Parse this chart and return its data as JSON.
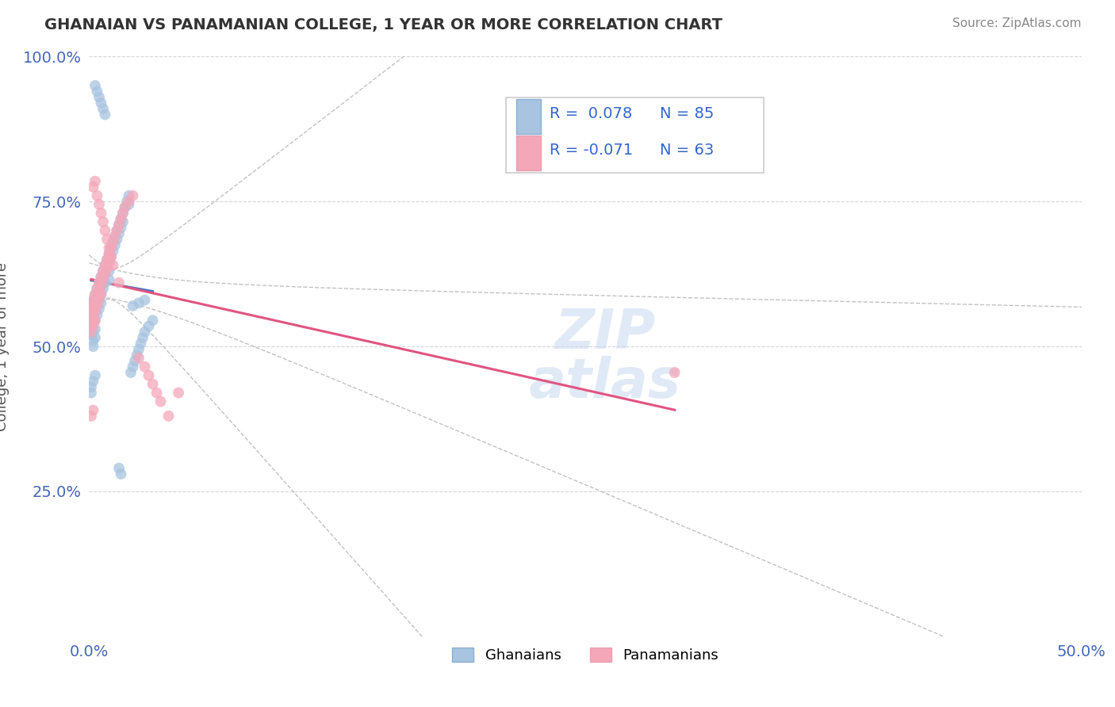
{
  "title": "GHANAIAN VS PANAMANIAN COLLEGE, 1 YEAR OR MORE CORRELATION CHART",
  "source_text": "Source: ZipAtlas.com",
  "ylabel": "College, 1 year or more",
  "xlim": [
    0.0,
    0.5
  ],
  "ylim": [
    0.0,
    1.0
  ],
  "xtick_labels": [
    "0.0%",
    "50.0%"
  ],
  "ytick_labels": [
    "25.0%",
    "50.0%",
    "75.0%",
    "100.0%"
  ],
  "ytick_vals": [
    0.25,
    0.5,
    0.75,
    1.0
  ],
  "xtick_vals": [
    0.0,
    0.5
  ],
  "ghanaian_color": "#a8c4e0",
  "panamanian_color": "#f4a7b9",
  "ghanaian_line_color": "#4472c4",
  "panamanian_line_color": "#e05580",
  "background_color": "#ffffff",
  "watermark": "ZIPatlas",
  "ghanaian_x": [
    0.001,
    0.001,
    0.001,
    0.001,
    0.001,
    0.002,
    0.002,
    0.002,
    0.002,
    0.002,
    0.002,
    0.002,
    0.003,
    0.003,
    0.003,
    0.003,
    0.003,
    0.003,
    0.004,
    0.004,
    0.004,
    0.004,
    0.005,
    0.005,
    0.005,
    0.005,
    0.006,
    0.006,
    0.006,
    0.006,
    0.007,
    0.007,
    0.007,
    0.008,
    0.008,
    0.008,
    0.009,
    0.009,
    0.01,
    0.01,
    0.01,
    0.01,
    0.011,
    0.011,
    0.012,
    0.012,
    0.013,
    0.013,
    0.014,
    0.014,
    0.015,
    0.015,
    0.016,
    0.016,
    0.017,
    0.017,
    0.018,
    0.019,
    0.02,
    0.02,
    0.021,
    0.022,
    0.023,
    0.024,
    0.025,
    0.026,
    0.027,
    0.028,
    0.03,
    0.032,
    0.003,
    0.004,
    0.005,
    0.006,
    0.007,
    0.008,
    0.001,
    0.001,
    0.002,
    0.003,
    0.015,
    0.016,
    0.022,
    0.025,
    0.028
  ],
  "ghanaian_y": [
    0.575,
    0.56,
    0.545,
    0.53,
    0.52,
    0.58,
    0.57,
    0.555,
    0.54,
    0.525,
    0.51,
    0.5,
    0.59,
    0.575,
    0.56,
    0.545,
    0.53,
    0.515,
    0.6,
    0.585,
    0.57,
    0.555,
    0.61,
    0.595,
    0.58,
    0.565,
    0.62,
    0.605,
    0.59,
    0.575,
    0.63,
    0.615,
    0.6,
    0.64,
    0.625,
    0.61,
    0.65,
    0.635,
    0.66,
    0.645,
    0.63,
    0.615,
    0.67,
    0.655,
    0.68,
    0.665,
    0.69,
    0.675,
    0.7,
    0.685,
    0.71,
    0.695,
    0.72,
    0.705,
    0.73,
    0.715,
    0.74,
    0.75,
    0.76,
    0.745,
    0.455,
    0.465,
    0.475,
    0.485,
    0.495,
    0.505,
    0.515,
    0.525,
    0.535,
    0.545,
    0.95,
    0.94,
    0.93,
    0.92,
    0.91,
    0.9,
    0.43,
    0.42,
    0.44,
    0.45,
    0.29,
    0.28,
    0.57,
    0.575,
    0.58
  ],
  "panamanian_x": [
    0.001,
    0.001,
    0.001,
    0.001,
    0.002,
    0.002,
    0.002,
    0.002,
    0.003,
    0.003,
    0.003,
    0.003,
    0.004,
    0.004,
    0.004,
    0.005,
    0.005,
    0.005,
    0.006,
    0.006,
    0.006,
    0.007,
    0.007,
    0.008,
    0.008,
    0.009,
    0.009,
    0.01,
    0.01,
    0.011,
    0.011,
    0.012,
    0.013,
    0.014,
    0.015,
    0.016,
    0.017,
    0.018,
    0.02,
    0.022,
    0.025,
    0.028,
    0.03,
    0.032,
    0.034,
    0.036,
    0.04,
    0.045,
    0.002,
    0.003,
    0.004,
    0.005,
    0.006,
    0.007,
    0.008,
    0.009,
    0.01,
    0.011,
    0.012,
    0.015,
    0.001,
    0.002,
    0.295
  ],
  "panamanian_y": [
    0.57,
    0.555,
    0.54,
    0.525,
    0.58,
    0.565,
    0.55,
    0.535,
    0.59,
    0.575,
    0.56,
    0.545,
    0.6,
    0.585,
    0.57,
    0.61,
    0.595,
    0.58,
    0.62,
    0.605,
    0.59,
    0.63,
    0.615,
    0.64,
    0.625,
    0.65,
    0.635,
    0.66,
    0.645,
    0.67,
    0.655,
    0.68,
    0.69,
    0.7,
    0.71,
    0.72,
    0.73,
    0.74,
    0.75,
    0.76,
    0.48,
    0.465,
    0.45,
    0.435,
    0.42,
    0.405,
    0.38,
    0.42,
    0.775,
    0.785,
    0.76,
    0.745,
    0.73,
    0.715,
    0.7,
    0.685,
    0.67,
    0.655,
    0.64,
    0.61,
    0.38,
    0.39,
    0.455
  ]
}
